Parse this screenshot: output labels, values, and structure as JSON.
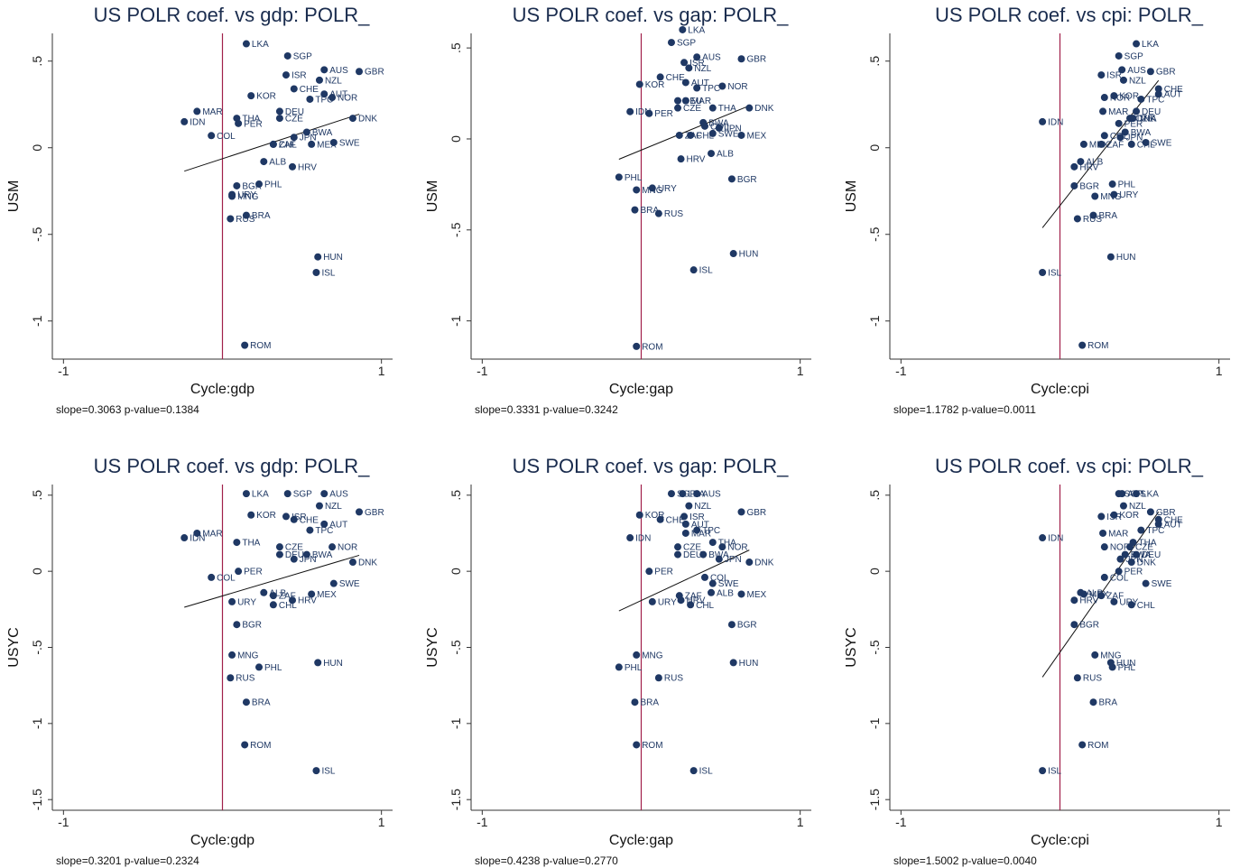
{
  "chart_data": [
    {
      "type": "scatter",
      "title": "US POLR coef. vs gdp: POLR_",
      "xlabel": "Cycle:gdp",
      "ylabel": "USM",
      "note": "slope=0.3063 p-value=0.1384",
      "color": "#1f3864",
      "vline": 0,
      "vline_color": "#a0204a",
      "xlim": [
        -1.07,
        1.07
      ],
      "ylim": [
        -1.22,
        0.66
      ],
      "xticks": [
        -1,
        1
      ],
      "yticks": [
        {
          "value": -1,
          "label": "-1"
        },
        {
          "value": -0.5,
          "label": "-.5"
        },
        0,
        {
          "value": 0.5,
          "label": ".5"
        }
      ],
      "labels": [
        "LKA",
        "SGP",
        "ISR",
        "AUS",
        "GBR",
        "NZL",
        "CHE",
        "AUT",
        "NOR",
        "TPC",
        "KOR",
        "DEU",
        "MAR",
        "CZE",
        "THA",
        "PER",
        "IDN",
        "DNK",
        "BWA",
        "JPN",
        "COL",
        "CHL",
        "ZAF",
        "MEX",
        "SWE",
        "ALB",
        "HRV",
        "BGR",
        "PHL",
        "URY",
        "MNG",
        "BRA",
        "RUS",
        "HUN",
        "ISL",
        "ROM"
      ],
      "x": [
        0.15,
        0.41,
        0.4,
        0.64,
        0.86,
        0.61,
        0.45,
        0.64,
        0.69,
        0.55,
        0.18,
        0.36,
        -0.16,
        0.36,
        0.09,
        0.1,
        -0.24,
        0.82,
        0.53,
        0.45,
        -0.07,
        0.32,
        0.32,
        0.56,
        0.7,
        0.26,
        0.44,
        0.09,
        0.23,
        0.06,
        0.06,
        0.15,
        0.05,
        0.6,
        0.59,
        0.14
      ],
      "y": [
        0.6,
        0.53,
        0.42,
        0.45,
        0.44,
        0.39,
        0.34,
        0.31,
        0.29,
        0.28,
        0.3,
        0.21,
        0.21,
        0.17,
        0.17,
        0.14,
        0.15,
        0.17,
        0.09,
        0.06,
        0.07,
        0.02,
        0.02,
        0.02,
        0.03,
        -0.08,
        -0.11,
        -0.22,
        -0.21,
        -0.27,
        -0.28,
        -0.39,
        -0.41,
        -0.63,
        -0.72,
        -1.14
      ]
    },
    {
      "type": "scatter",
      "title": "US POLR coef. vs gap: POLR_",
      "xlabel": "Cycle:gap",
      "ylabel": "USM",
      "note": "slope=0.3331 p-value=0.3242",
      "color": "#1f3864",
      "vline": 0,
      "vline_color": "#a0204a",
      "xlim": [
        -1.07,
        1.07
      ],
      "ylim": [
        -1.21,
        0.58
      ],
      "xticks": [
        -1,
        1
      ],
      "yticks": [
        {
          "value": -1,
          "label": "-1"
        },
        {
          "value": -0.5,
          "label": "-.5"
        },
        0,
        {
          "value": 0.5,
          "label": ".5"
        }
      ],
      "labels": [
        "LKA",
        "SGP",
        "ISR",
        "AUS",
        "GBR",
        "NZL",
        "CHE",
        "AUT",
        "NOR",
        "TPC",
        "KOR",
        "DEU",
        "MAR",
        "CZE",
        "THA",
        "PER",
        "IDN",
        "DNK",
        "BWA",
        "JPN",
        "COL",
        "CHL",
        "ZAF",
        "MEX",
        "SWE",
        "ALB",
        "HRV",
        "BGR",
        "PHL",
        "URY",
        "MNG",
        "BRA",
        "RUS",
        "HUN",
        "ISL",
        "ROM"
      ],
      "x": [
        0.26,
        0.19,
        0.27,
        0.35,
        0.63,
        0.3,
        0.12,
        0.28,
        0.51,
        0.35,
        -0.01,
        0.23,
        0.28,
        0.23,
        0.45,
        0.05,
        -0.07,
        0.68,
        0.39,
        0.49,
        0.4,
        0.31,
        0.24,
        0.63,
        0.45,
        0.44,
        0.25,
        0.57,
        -0.14,
        0.07,
        -0.03,
        -0.04,
        0.11,
        0.58,
        0.33,
        -0.03
      ],
      "y": [
        0.6,
        0.53,
        0.42,
        0.45,
        0.44,
        0.39,
        0.34,
        0.31,
        0.29,
        0.28,
        0.3,
        0.21,
        0.21,
        0.17,
        0.17,
        0.14,
        0.15,
        0.17,
        0.09,
        0.06,
        0.07,
        0.02,
        0.02,
        0.02,
        0.03,
        -0.08,
        -0.11,
        -0.22,
        -0.21,
        -0.27,
        -0.28,
        -0.39,
        -0.41,
        -0.63,
        -0.72,
        -1.14
      ]
    },
    {
      "type": "scatter",
      "title": "US POLR coef. vs cpi: POLR_",
      "xlabel": "Cycle:cpi",
      "ylabel": "USM",
      "note": "slope=1.1782 p-value=0.0011",
      "color": "#1f3864",
      "vline": 0,
      "vline_color": "#a0204a",
      "xlim": [
        -1.07,
        1.07
      ],
      "ylim": [
        -1.22,
        0.66
      ],
      "xticks": [
        -1,
        1
      ],
      "yticks": [
        {
          "value": -1,
          "label": "-1"
        },
        {
          "value": -0.5,
          "label": "-.5"
        },
        0,
        {
          "value": 0.5,
          "label": ".5"
        }
      ],
      "labels": [
        "LKA",
        "SGP",
        "ISR",
        "AUS",
        "GBR",
        "NZL",
        "CHE",
        "AUT",
        "NOR",
        "TPC",
        "KOR",
        "DEU",
        "MAR",
        "CZE",
        "THA",
        "PER",
        "IDN",
        "DNK",
        "BWA",
        "JPN",
        "COL",
        "CHL",
        "ZAF",
        "MEX",
        "SWE",
        "ALB",
        "HRV",
        "BGR",
        "PHL",
        "URY",
        "MNG",
        "BRA",
        "RUS",
        "HUN",
        "ISL",
        "ROM"
      ],
      "x": [
        0.48,
        0.37,
        0.26,
        0.39,
        0.57,
        0.4,
        0.62,
        0.62,
        0.28,
        0.51,
        0.34,
        0.48,
        0.27,
        0.44,
        0.46,
        0.37,
        -0.11,
        0.45,
        0.41,
        0.38,
        0.28,
        0.45,
        0.26,
        0.15,
        0.54,
        0.13,
        0.09,
        0.09,
        0.33,
        0.34,
        0.22,
        0.21,
        0.11,
        0.32,
        -0.11,
        0.14
      ],
      "y": [
        0.6,
        0.53,
        0.42,
        0.45,
        0.44,
        0.39,
        0.34,
        0.31,
        0.29,
        0.28,
        0.3,
        0.21,
        0.21,
        0.17,
        0.17,
        0.14,
        0.15,
        0.17,
        0.09,
        0.06,
        0.07,
        0.02,
        0.02,
        0.02,
        0.03,
        -0.08,
        -0.11,
        -0.22,
        -0.21,
        -0.27,
        -0.28,
        -0.39,
        -0.41,
        -0.63,
        -0.72,
        -1.14
      ]
    },
    {
      "type": "scatter",
      "title": "US POLR coef. vs gdp: POLR_",
      "xlabel": "Cycle:gdp",
      "ylabel": "USYC",
      "note": "slope=0.3201 p-value=0.2324",
      "color": "#1f3864",
      "vline": 0,
      "vline_color": "#a0204a",
      "xlim": [
        -1.07,
        1.07
      ],
      "ylim": [
        -1.57,
        0.57
      ],
      "xticks": [
        -1,
        1
      ],
      "yticks": [
        {
          "value": -1.5,
          "label": "-1.5"
        },
        {
          "value": -1,
          "label": "-1"
        },
        {
          "value": -0.5,
          "label": "-.5"
        },
        0,
        {
          "value": 0.5,
          "label": ".5"
        }
      ],
      "labels": [
        "LKA",
        "SGP",
        "ISR",
        "AUS",
        "GBR",
        "NZL",
        "CHE",
        "AUT",
        "NOR",
        "TPC",
        "KOR",
        "DEU",
        "MAR",
        "CZE",
        "THA",
        "PER",
        "IDN",
        "DNK",
        "BWA",
        "JPN",
        "COL",
        "CHL",
        "ZAF",
        "MEX",
        "SWE",
        "ALB",
        "HRV",
        "BGR",
        "PHL",
        "URY",
        "MNG",
        "BRA",
        "RUS",
        "HUN",
        "ISL",
        "ROM"
      ],
      "x": [
        0.15,
        0.41,
        0.4,
        0.64,
        0.86,
        0.61,
        0.45,
        0.64,
        0.69,
        0.55,
        0.18,
        0.36,
        -0.16,
        0.36,
        0.09,
        0.1,
        -0.24,
        0.82,
        0.53,
        0.45,
        -0.07,
        0.32,
        0.32,
        0.56,
        0.7,
        0.26,
        0.44,
        0.09,
        0.23,
        0.06,
        0.06,
        0.15,
        0.05,
        0.6,
        0.59,
        0.14
      ],
      "y": [
        0.51,
        0.51,
        0.36,
        0.51,
        0.39,
        0.43,
        0.34,
        0.31,
        0.16,
        0.27,
        0.37,
        0.11,
        0.25,
        0.16,
        0.19,
        0.0,
        0.22,
        0.06,
        0.11,
        0.08,
        -0.04,
        -0.22,
        -0.16,
        -0.15,
        -0.08,
        -0.14,
        -0.19,
        -0.35,
        -0.63,
        -0.2,
        -0.55,
        -0.86,
        -0.7,
        -0.6,
        -1.31,
        -1.14
      ]
    },
    {
      "type": "scatter",
      "title": "US POLR coef. vs gap: POLR_",
      "xlabel": "Cycle:gap",
      "ylabel": "USYC",
      "note": "slope=0.4238 p-value=0.2770",
      "color": "#1f3864",
      "vline": 0,
      "vline_color": "#a0204a",
      "xlim": [
        -1.07,
        1.07
      ],
      "ylim": [
        -1.57,
        0.57
      ],
      "xticks": [
        -1,
        1
      ],
      "yticks": [
        {
          "value": -1.5,
          "label": "-1.5"
        },
        {
          "value": -1,
          "label": "-1"
        },
        {
          "value": -0.5,
          "label": "-.5"
        },
        0,
        {
          "value": 0.5,
          "label": ".5"
        }
      ],
      "labels": [
        "LKA",
        "SGP",
        "ISR",
        "AUS",
        "GBR",
        "NZL",
        "CHE",
        "AUT",
        "NOR",
        "TPC",
        "KOR",
        "DEU",
        "MAR",
        "CZE",
        "THA",
        "PER",
        "IDN",
        "DNK",
        "BWA",
        "JPN",
        "COL",
        "CHL",
        "ZAF",
        "MEX",
        "SWE",
        "ALB",
        "HRV",
        "BGR",
        "PHL",
        "URY",
        "MNG",
        "BRA",
        "RUS",
        "HUN",
        "ISL",
        "ROM"
      ],
      "x": [
        0.26,
        0.19,
        0.27,
        0.35,
        0.63,
        0.3,
        0.12,
        0.28,
        0.51,
        0.35,
        -0.01,
        0.23,
        0.28,
        0.23,
        0.45,
        0.05,
        -0.07,
        0.68,
        0.39,
        0.49,
        0.4,
        0.31,
        0.24,
        0.63,
        0.45,
        0.44,
        0.25,
        0.57,
        -0.14,
        0.07,
        -0.03,
        -0.04,
        0.11,
        0.58,
        0.33,
        -0.03
      ],
      "y": [
        0.51,
        0.51,
        0.36,
        0.51,
        0.39,
        0.43,
        0.34,
        0.31,
        0.16,
        0.27,
        0.37,
        0.11,
        0.25,
        0.16,
        0.19,
        0.0,
        0.22,
        0.06,
        0.11,
        0.08,
        -0.04,
        -0.22,
        -0.16,
        -0.15,
        -0.08,
        -0.14,
        -0.19,
        -0.35,
        -0.63,
        -0.2,
        -0.55,
        -0.86,
        -0.7,
        -0.6,
        -1.31,
        -1.14
      ]
    },
    {
      "type": "scatter",
      "title": "US POLR coef. vs cpi: POLR_",
      "xlabel": "Cycle:cpi",
      "ylabel": "USYC",
      "note": "slope=1.5002 p-value=0.0040",
      "color": "#1f3864",
      "vline": 0,
      "vline_color": "#a0204a",
      "xlim": [
        -1.07,
        1.07
      ],
      "ylim": [
        -1.57,
        0.57
      ],
      "xticks": [
        -1,
        1
      ],
      "yticks": [
        {
          "value": -1.5,
          "label": "-1.5"
        },
        {
          "value": -1,
          "label": "-1"
        },
        {
          "value": -0.5,
          "label": "-.5"
        },
        0,
        {
          "value": 0.5,
          "label": ".5"
        }
      ],
      "labels": [
        "LKA",
        "SGP",
        "ISR",
        "AUS",
        "GBR",
        "NZL",
        "CHE",
        "AUT",
        "NOR",
        "TPC",
        "KOR",
        "DEU",
        "MAR",
        "CZE",
        "THA",
        "PER",
        "IDN",
        "DNK",
        "BWA",
        "JPN",
        "COL",
        "CHL",
        "ZAF",
        "MEX",
        "SWE",
        "ALB",
        "HRV",
        "BGR",
        "PHL",
        "URY",
        "MNG",
        "BRA",
        "RUS",
        "HUN",
        "ISL",
        "ROM"
      ],
      "x": [
        0.48,
        0.37,
        0.26,
        0.39,
        0.57,
        0.4,
        0.62,
        0.62,
        0.28,
        0.51,
        0.34,
        0.48,
        0.27,
        0.44,
        0.46,
        0.37,
        -0.11,
        0.45,
        0.41,
        0.38,
        0.28,
        0.45,
        0.26,
        0.15,
        0.54,
        0.13,
        0.09,
        0.09,
        0.33,
        0.34,
        0.22,
        0.21,
        0.11,
        0.32,
        -0.11,
        0.14
      ],
      "y": [
        0.51,
        0.51,
        0.36,
        0.51,
        0.39,
        0.43,
        0.34,
        0.31,
        0.16,
        0.27,
        0.37,
        0.11,
        0.25,
        0.16,
        0.19,
        0.0,
        0.22,
        0.06,
        0.11,
        0.08,
        -0.04,
        -0.22,
        -0.16,
        -0.15,
        -0.08,
        -0.14,
        -0.19,
        -0.35,
        -0.63,
        -0.2,
        -0.55,
        -0.86,
        -0.7,
        -0.6,
        -1.31,
        -1.14
      ]
    }
  ]
}
